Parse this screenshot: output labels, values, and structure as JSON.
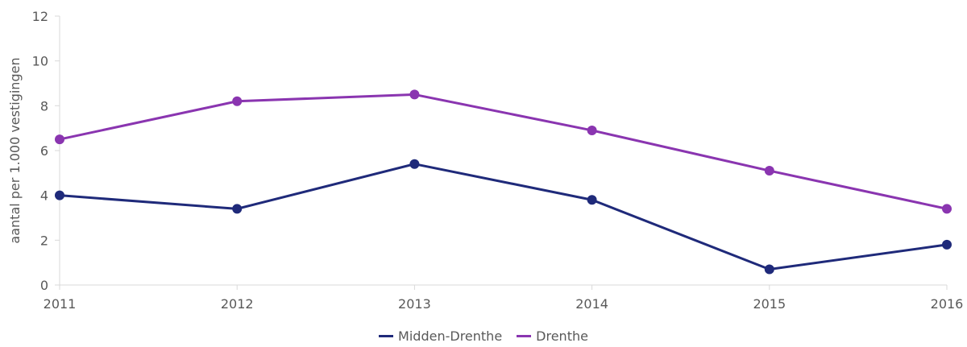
{
  "chart_data": {
    "type": "line",
    "x": [
      2011,
      2012,
      2013,
      2014,
      2015,
      2016
    ],
    "x_tick_labels": [
      "2011",
      "2012",
      "2013",
      "2014",
      "2015",
      "2016"
    ],
    "ylabel": "aantal per 1.000 vestigingen",
    "ylim": [
      0,
      12
    ],
    "y_ticks": [
      0,
      2,
      4,
      6,
      8,
      10,
      12
    ],
    "y_tick_labels": [
      "0",
      "2",
      "4",
      "6",
      "8",
      "10",
      "12"
    ],
    "grid": false,
    "legend_position": "bottom",
    "series": [
      {
        "name": "Midden-Drenthe",
        "color": "#1f2a7a",
        "values": [
          4.0,
          3.4,
          5.4,
          3.8,
          0.7,
          1.8
        ]
      },
      {
        "name": "Drenthe",
        "color": "#8a35b0",
        "values": [
          6.5,
          8.2,
          8.5,
          6.9,
          5.1,
          3.4
        ]
      }
    ]
  }
}
